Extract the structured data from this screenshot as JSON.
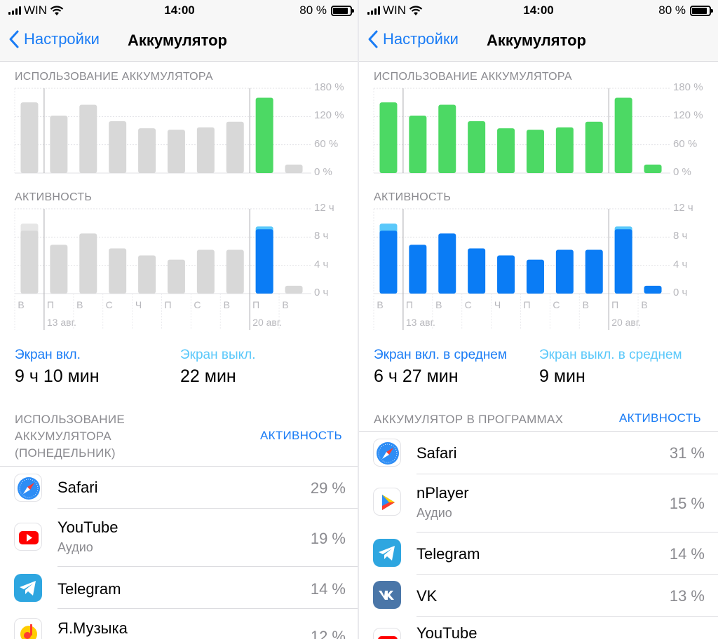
{
  "status_bar": {
    "carrier": "WIN",
    "time": "14:00",
    "battery_text": "80 %"
  },
  "nav": {
    "back_label": "Настройки",
    "title": "Аккумулятор"
  },
  "colors": {
    "accent_blue": "#1a7cf5",
    "light_blue": "#5ac8fa",
    "bar_green": "#4cd964",
    "bar_gray": "#d8d8d8",
    "bar_activity_blue": "#0a7cf5"
  },
  "charts": {
    "battery_heading": "ИСПОЛЬЗОВАНИЕ АККУМУЛЯТОРА",
    "activity_heading": "АКТИВНОСТЬ",
    "battery_y_ticks": [
      "180 %",
      "120 %",
      "60 %",
      "0 %"
    ],
    "activity_y_ticks": [
      "12 ч",
      "8 ч",
      "4 ч",
      "0 ч"
    ],
    "day_labels": [
      "В",
      "П",
      "В",
      "С",
      "Ч",
      "П",
      "С",
      "В",
      "П",
      "В"
    ],
    "date_labels": [
      "13 авг.",
      "20 авг."
    ],
    "battery_percent": [
      150,
      122,
      145,
      110,
      95,
      92,
      97,
      109,
      160,
      18
    ],
    "activity_hours_on": [
      8.9,
      6.9,
      8.5,
      6.4,
      5.4,
      4.8,
      6.2,
      6.2,
      9.1,
      1.1
    ],
    "activity_hours_total": [
      9.9,
      6.9,
      8.5,
      6.4,
      5.4,
      4.8,
      6.2,
      6.2,
      9.5,
      1.1
    ],
    "left_highlight_index": 8,
    "left_highlight_index_battery": 8
  },
  "left": {
    "screen_on_label": "Экран вкл.",
    "screen_on_value": "9 ч 10 мин",
    "screen_off_label": "Экран выкл.",
    "screen_off_value": "22 мин",
    "list_heading": [
      "ИСПОЛЬЗОВАНИЕ",
      "АККУМУЛЯТОРА",
      "(ПОНЕДЕЛЬНИК)"
    ],
    "list_action": "АКТИВНОСТЬ",
    "apps": [
      {
        "name": "Safari",
        "sub": "",
        "pct": "29 %",
        "icon": "safari-icon"
      },
      {
        "name": "YouTube",
        "sub": "Аудио",
        "pct": "19 %",
        "icon": "youtube-icon"
      },
      {
        "name": "Telegram",
        "sub": "",
        "pct": "14 %",
        "icon": "telegram-icon"
      },
      {
        "name": "Я.Музыка",
        "sub": "",
        "pct": "12 %",
        "icon": "yandex-music-icon"
      }
    ]
  },
  "right": {
    "screen_on_label": "Экран вкл. в среднем",
    "screen_on_value": "6 ч 27 мин",
    "screen_off_label": "Экран выкл. в среднем",
    "screen_off_value": "9 мин",
    "list_heading": "АККУМУЛЯТОР В ПРОГРАММАХ",
    "list_action": "АКТИВНОСТЬ",
    "apps": [
      {
        "name": "Safari",
        "sub": "",
        "pct": "31 %",
        "icon": "safari-icon"
      },
      {
        "name": "nPlayer",
        "sub": "Аудио",
        "pct": "15 %",
        "icon": "nplayer-icon"
      },
      {
        "name": "Telegram",
        "sub": "",
        "pct": "14 %",
        "icon": "telegram-icon"
      },
      {
        "name": "VK",
        "sub": "",
        "pct": "13 %",
        "icon": "vk-icon"
      },
      {
        "name": "YouTube",
        "sub": "",
        "pct": "",
        "icon": "youtube-icon"
      }
    ]
  }
}
